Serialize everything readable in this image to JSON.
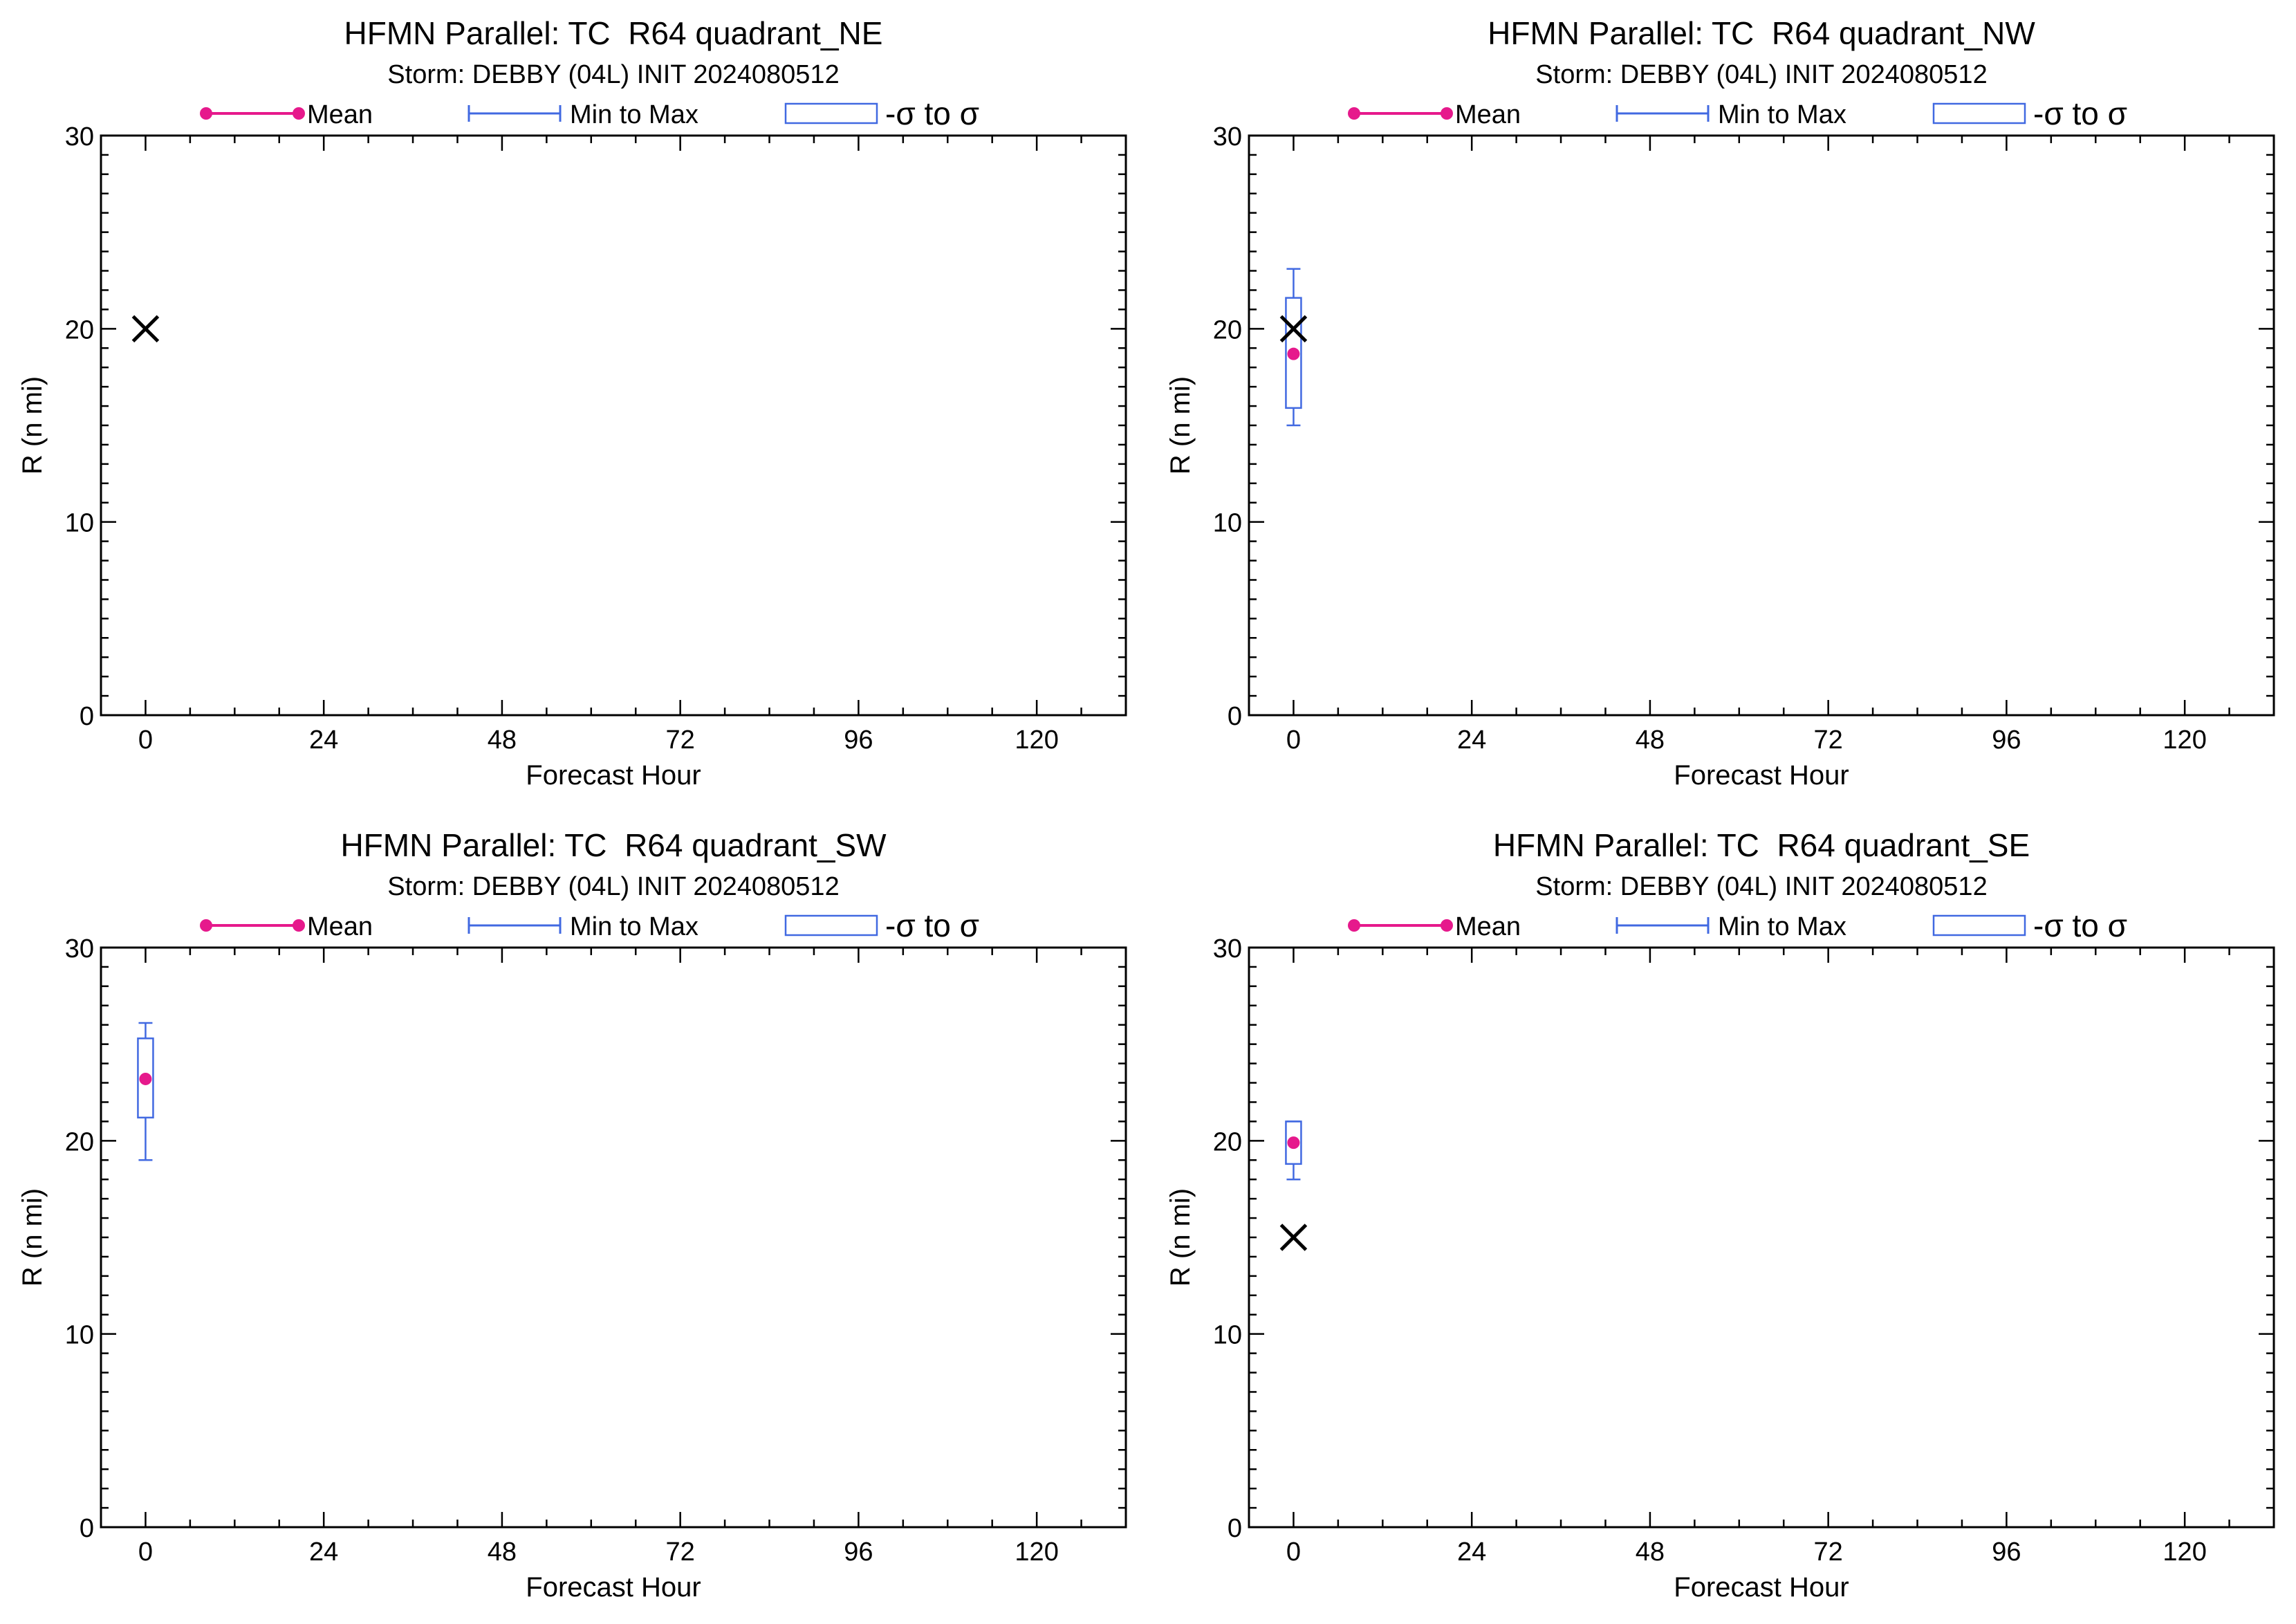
{
  "colors": {
    "mean": "#e6198c",
    "range": "#4169e1",
    "box": "#4169e1",
    "best_track": "#000000",
    "axis": "#000000"
  },
  "legend": {
    "mean_label": "Mean",
    "range_label": "Min to Max",
    "sigma_label": "-σ to σ"
  },
  "chart_data": [
    {
      "type": "box",
      "title": "HFMN Parallel: TC  R64 quadrant_NE",
      "subtitle": "Storm: DEBBY (04L) INIT 2024080512",
      "xlabel": "Forecast Hour",
      "ylabel": "R (n mi)",
      "xlim": [
        -6,
        132
      ],
      "ylim": [
        0,
        30
      ],
      "xticks": [
        "0",
        "24",
        "48",
        "72",
        "96",
        "120"
      ],
      "yticks": [
        "0",
        "10",
        "20",
        "30"
      ],
      "mean": [],
      "best_track": [
        {
          "x": 0,
          "y": 20
        }
      ]
    },
    {
      "type": "box",
      "title": "HFMN Parallel: TC  R64 quadrant_NW",
      "subtitle": "Storm: DEBBY (04L) INIT 2024080512",
      "xlabel": "Forecast Hour",
      "ylabel": "R (n mi)",
      "xlim": [
        -6,
        132
      ],
      "ylim": [
        0,
        30
      ],
      "xticks": [
        "0",
        "24",
        "48",
        "72",
        "96",
        "120"
      ],
      "yticks": [
        "0",
        "10",
        "20",
        "30"
      ],
      "mean": [
        {
          "x": 0,
          "y": 18.7,
          "min": 15.0,
          "max": 23.1,
          "sigma_lo": 15.9,
          "sigma_hi": 21.6
        }
      ],
      "best_track": [
        {
          "x": 0,
          "y": 20
        }
      ]
    },
    {
      "type": "box",
      "title": "HFMN Parallel: TC  R64 quadrant_SW",
      "subtitle": "Storm: DEBBY (04L) INIT 2024080512",
      "xlabel": "Forecast Hour",
      "ylabel": "R (n mi)",
      "xlim": [
        -6,
        132
      ],
      "ylim": [
        0,
        30
      ],
      "xticks": [
        "0",
        "24",
        "48",
        "72",
        "96",
        "120"
      ],
      "yticks": [
        "0",
        "10",
        "20",
        "30"
      ],
      "mean": [
        {
          "x": 0,
          "y": 23.2,
          "min": 19.0,
          "max": 26.1,
          "sigma_lo": 21.2,
          "sigma_hi": 25.3
        }
      ],
      "best_track": []
    },
    {
      "type": "box",
      "title": "HFMN Parallel: TC  R64 quadrant_SE",
      "subtitle": "Storm: DEBBY (04L) INIT 2024080512",
      "xlabel": "Forecast Hour",
      "ylabel": "R (n mi)",
      "xlim": [
        -6,
        132
      ],
      "ylim": [
        0,
        30
      ],
      "xticks": [
        "0",
        "24",
        "48",
        "72",
        "96",
        "120"
      ],
      "yticks": [
        "0",
        "10",
        "20",
        "30"
      ],
      "mean": [
        {
          "x": 0,
          "y": 19.9,
          "min": 18.0,
          "max": 21.0,
          "sigma_lo": 18.8,
          "sigma_hi": 21.0
        }
      ],
      "best_track": [
        {
          "x": 0,
          "y": 15
        }
      ]
    }
  ]
}
